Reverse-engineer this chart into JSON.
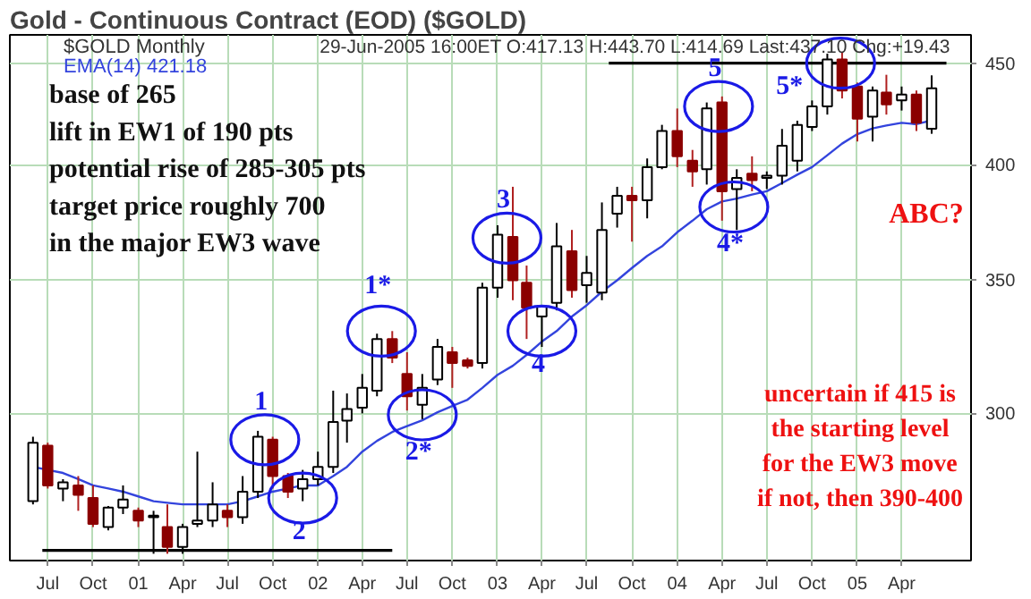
{
  "chart_data": {
    "type": "candlestick",
    "title": "Gold - Continuous Contract (EOD) ($GOLD)",
    "subtitle": "$GOLD Monthly",
    "x": [
      "2000-06",
      "2000-07",
      "2000-08",
      "2000-09",
      "2000-10",
      "2000-11",
      "2000-12",
      "2001-01",
      "2001-02",
      "2001-03",
      "2001-04",
      "2001-05",
      "2001-06",
      "2001-07",
      "2001-08",
      "2001-09",
      "2001-10",
      "2001-11",
      "2001-12",
      "2002-01",
      "2002-02",
      "2002-03",
      "2002-04",
      "2002-05",
      "2002-06",
      "2002-07",
      "2002-08",
      "2002-09",
      "2002-10",
      "2002-11",
      "2002-12",
      "2003-01",
      "2003-02",
      "2003-03",
      "2003-04",
      "2003-05",
      "2003-06",
      "2003-07",
      "2003-08",
      "2003-09",
      "2003-10",
      "2003-11",
      "2003-12",
      "2004-01",
      "2004-02",
      "2004-03",
      "2004-04",
      "2004-05",
      "2004-06",
      "2004-07",
      "2004-08",
      "2004-09",
      "2004-10",
      "2004-11",
      "2004-12",
      "2005-01",
      "2005-02",
      "2005-03",
      "2005-04",
      "2005-05",
      "2005-06"
    ],
    "ohlc": [
      [
        271,
        292,
        270,
        290
      ],
      [
        289,
        290,
        275,
        276
      ],
      [
        275,
        278,
        271,
        277
      ],
      [
        276,
        279,
        268,
        273
      ],
      [
        272,
        276,
        263,
        264
      ],
      [
        263,
        269.5,
        262,
        269
      ],
      [
        269,
        276,
        267,
        271.5
      ],
      [
        268,
        269,
        263,
        265
      ],
      [
        266,
        268,
        255,
        266.5
      ],
      [
        263,
        270,
        255,
        257
      ],
      [
        257,
        264,
        255,
        263
      ],
      [
        264,
        287,
        263,
        265
      ],
      [
        265,
        277,
        263,
        270
      ],
      [
        268,
        270,
        263,
        266
      ],
      [
        266,
        279,
        264,
        274
      ],
      [
        274,
        294,
        272,
        292
      ],
      [
        291,
        292,
        275,
        279
      ],
      [
        279,
        280,
        272,
        274
      ],
      [
        275,
        281,
        271,
        278
      ],
      [
        278,
        287,
        276,
        282
      ],
      [
        282,
        308,
        280,
        297
      ],
      [
        297.5,
        307,
        290,
        301.5
      ],
      [
        302,
        314,
        300,
        309
      ],
      [
        308,
        329,
        306,
        327
      ],
      [
        327,
        330,
        318,
        320
      ],
      [
        314,
        322,
        301,
        306
      ],
      [
        303,
        314,
        298,
        309
      ],
      [
        312,
        327,
        310,
        324
      ],
      [
        322,
        324,
        309,
        318
      ],
      [
        319,
        320,
        316,
        317
      ],
      [
        318,
        349,
        316,
        347
      ],
      [
        347,
        373,
        343,
        369
      ],
      [
        368,
        390,
        342,
        350
      ],
      [
        349,
        356,
        327,
        339
      ],
      [
        335.6,
        340,
        324,
        339.6
      ],
      [
        341,
        374,
        338,
        364
      ],
      [
        362,
        371,
        343,
        346
      ],
      [
        348,
        360,
        341,
        353
      ],
      [
        345,
        383,
        342,
        371
      ],
      [
        378,
        390,
        372,
        386
      ],
      [
        386,
        390,
        366,
        384
      ],
      [
        384,
        403,
        376,
        399
      ],
      [
        399,
        419,
        398,
        416
      ],
      [
        416,
        427,
        399,
        404
      ],
      [
        402,
        407,
        390,
        397
      ],
      [
        398,
        430,
        391,
        427
      ],
      [
        430,
        433,
        375,
        388
      ],
      [
        389,
        398,
        371,
        394
      ],
      [
        396,
        404,
        388,
        393
      ],
      [
        394,
        397,
        389,
        395
      ],
      [
        395,
        417,
        391,
        409
      ],
      [
        402,
        421,
        397,
        419
      ],
      [
        418,
        431,
        416,
        428
      ],
      [
        428,
        455,
        424,
        452
      ],
      [
        452,
        456,
        432,
        436
      ],
      [
        438,
        440,
        411,
        422
      ],
      [
        423,
        438,
        411,
        436
      ],
      [
        435,
        444,
        424,
        429
      ],
      [
        431,
        438,
        426,
        434
      ],
      [
        434,
        436,
        416,
        420
      ],
      [
        417.13,
        443.7,
        414.69,
        437.1
      ]
    ],
    "series": [
      {
        "type": "line",
        "name": "EMA(14) 421.18",
        "color": "#3344dd",
        "values": [
          282,
          281,
          280,
          278,
          276,
          275,
          274,
          272.5,
          271,
          270.5,
          270,
          270,
          270,
          270,
          271,
          272.5,
          274,
          275,
          276,
          276,
          279,
          282,
          287,
          290.6,
          293.6,
          295.6,
          297.6,
          300.4,
          302.6,
          304.8,
          309,
          313.7,
          317,
          321,
          326,
          330,
          335.6,
          340,
          345.4,
          350,
          355,
          360,
          364,
          370,
          375,
          380,
          383.4,
          384.7,
          386.5,
          388,
          391.7,
          395.5,
          399,
          404.5,
          410,
          414.5,
          417.3,
          418.7,
          420,
          419.3,
          421.18
        ]
      },
      {
        "type": "line",
        "color": "#000000",
        "x": [
          "2000-06-20",
          "2002-06"
        ],
        "values": [
          256,
          256
        ]
      },
      {
        "type": "line",
        "color": "#000000",
        "x": [
          "2003-08-15",
          "2005-07"
        ],
        "values": [
          450,
          450
        ]
      }
    ],
    "log": true,
    "xlim": [
      "2000-04-15",
      "2005-08-20"
    ],
    "ylim": [
      253,
      465
    ],
    "yticks": [
      300,
      350,
      400,
      450
    ],
    "xticks": [
      {
        "value": "2000-07",
        "label": "Jul"
      },
      {
        "value": "2000-10",
        "label": "Oct"
      },
      {
        "value": "2001-01",
        "label": "01"
      },
      {
        "value": "2001-04",
        "label": "Apr"
      },
      {
        "value": "2001-07",
        "label": "Jul"
      },
      {
        "value": "2001-10",
        "label": "Oct"
      },
      {
        "value": "2002-01",
        "label": "02"
      },
      {
        "value": "2002-04",
        "label": "Apr"
      },
      {
        "value": "2002-07",
        "label": "Jul"
      },
      {
        "value": "2002-10",
        "label": "Oct"
      },
      {
        "value": "2003-01",
        "label": "03"
      },
      {
        "value": "2003-04",
        "label": "Apr"
      },
      {
        "value": "2003-07",
        "label": "Jul"
      },
      {
        "value": "2003-10",
        "label": "Oct"
      },
      {
        "value": "2004-01",
        "label": "04"
      },
      {
        "value": "2004-04",
        "label": "Apr"
      },
      {
        "value": "2004-07",
        "label": "Jul"
      },
      {
        "value": "2004-10",
        "label": "Oct"
      },
      {
        "value": "2005-01",
        "label": "05"
      },
      {
        "value": "2005-04",
        "label": "Apr"
      }
    ],
    "grid": true,
    "annotations": [
      "29-Jun-2005 16:00ET  O:417.13  H:443.70  L:414.69  Last:437.10  Chg:+19.43",
      "base of 265\nlift in EW1 of 190 pts\npotential rise of 285-305 pts\ntarget price roughly 700\nin the major EW3 wave",
      "uncertain if 415 is\nthe starting level\nfor the EW3 move\nif not, then 390-400",
      "ABC?",
      {
        "text": "1",
        "x": "2001-09-15",
        "y": 291
      },
      {
        "text": "2",
        "x": "2001-12",
        "y": 272
      },
      {
        "text": "1*",
        "x": "2002-05-10",
        "y": 330
      },
      {
        "text": "2*",
        "x": "2002-08",
        "y": 299.5
      },
      {
        "text": "3",
        "x": "2003-01-20",
        "y": 367.5
      },
      {
        "text": "4",
        "x": "2003-04",
        "y": 330
      },
      {
        "text": "5",
        "x": "2004-03-25",
        "y": 428
      },
      {
        "text": "4*",
        "x": "2004-04-25",
        "y": 381
      },
      {
        "text": "5*",
        "x": "2004-11-28",
        "y": 450
      }
    ]
  }
}
